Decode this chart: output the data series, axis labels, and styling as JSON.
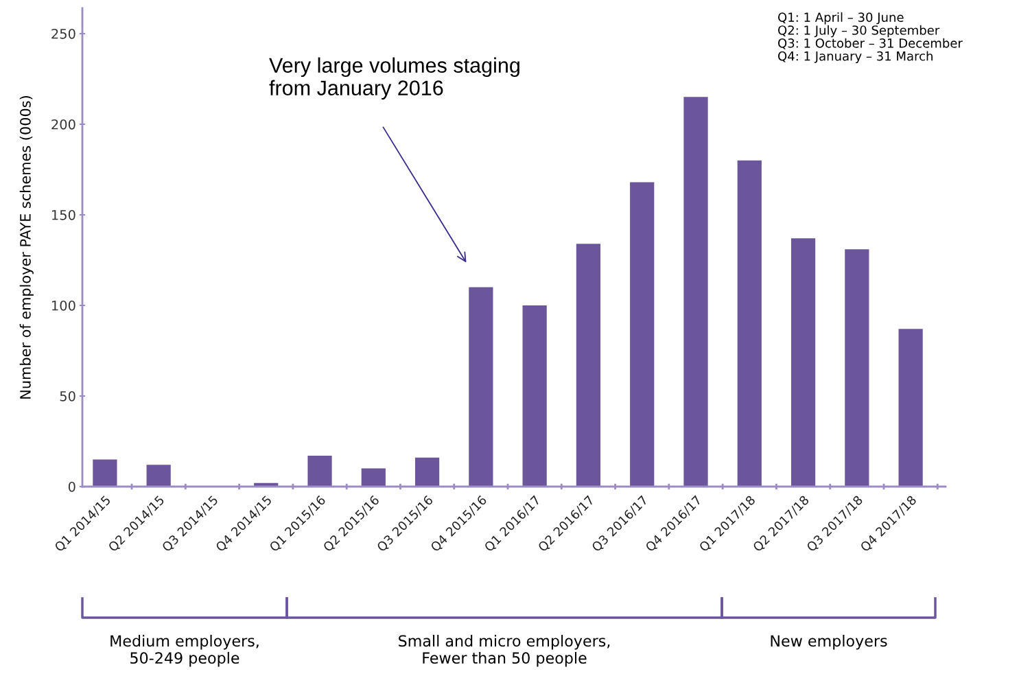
{
  "chart_data": {
    "type": "bar",
    "ylabel": "Number of employer PAYE schemes (000s)",
    "categories": [
      "Q1 2014/15",
      "Q2 2014/15",
      "Q3 2014/15",
      "Q4 2014/15",
      "Q1 2015/16",
      "Q2 2015/16",
      "Q3 2015/16",
      "Q4 2015/16",
      "Q1 2016/17",
      "Q2 2016/17",
      "Q3 2016/17",
      "Q4 2016/17",
      "Q1 2017/18",
      "Q2 2017/18",
      "Q3 2017/18",
      "Q4 2017/18"
    ],
    "values": [
      15,
      12,
      0,
      2,
      17,
      10,
      16,
      110,
      100,
      134,
      168,
      215,
      180,
      137,
      131,
      87
    ],
    "color": "#6b559b",
    "ylim": [
      0,
      264
    ],
    "yticks": [
      0,
      50,
      100,
      150,
      200,
      250
    ],
    "grid": false,
    "annotations": [
      "Very large volumes staging\nfrom January 2016",
      "Q1: 1 April – 30 June\nQ2: 1 July – 30 September\nQ3: 1 October – 31 December\nQ4: 1 January – 31 March",
      "Medium employers,\n50-249 people",
      "Small and micro employers,\nFewer than 50 people",
      "New employers"
    ]
  }
}
